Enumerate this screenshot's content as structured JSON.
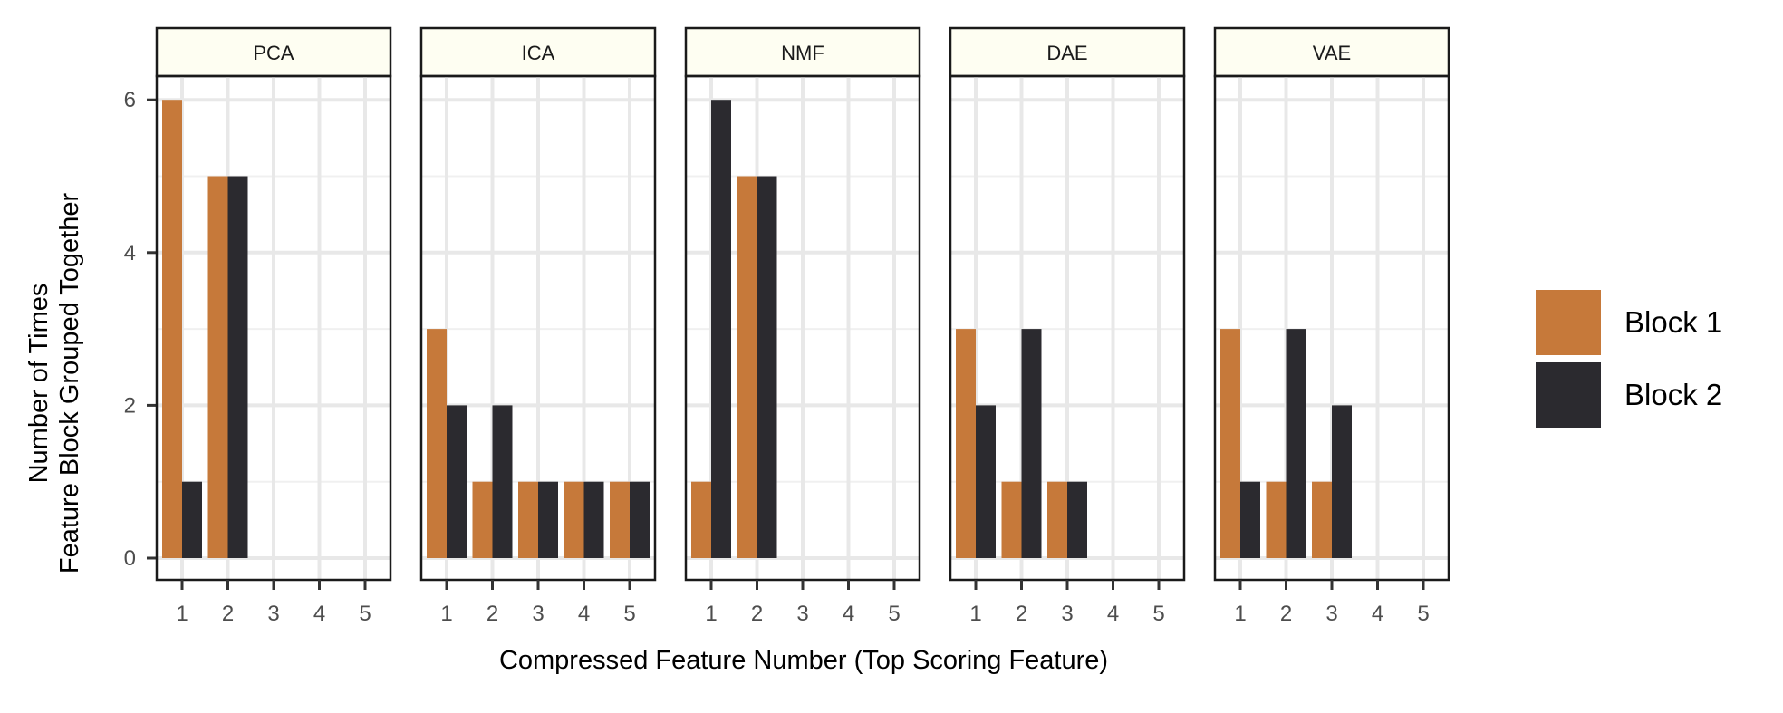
{
  "chart_data": {
    "type": "bar",
    "layout": "faceted",
    "xlabel": "Compressed Feature Number (Top Scoring Feature)",
    "ylabel_lines": [
      "Number of Times",
      "Feature Block Grouped Together"
    ],
    "x_ticks": [
      "1",
      "2",
      "3",
      "4",
      "5"
    ],
    "y_ticks": [
      0,
      2,
      4,
      6
    ],
    "ylim": [
      0,
      6
    ],
    "grid": true,
    "legend_position": "right",
    "series": [
      {
        "name": "Block 1",
        "color": "#C6793A"
      },
      {
        "name": "Block 2",
        "color": "#2B2A2F"
      }
    ],
    "facets": [
      {
        "title": "PCA",
        "block1": [
          6,
          5,
          0,
          0,
          0
        ],
        "block2": [
          1,
          5,
          0,
          0,
          0
        ]
      },
      {
        "title": "ICA",
        "block1": [
          3,
          1,
          1,
          1,
          1
        ],
        "block2": [
          2,
          2,
          1,
          1,
          1
        ]
      },
      {
        "title": "NMF",
        "block1": [
          1,
          5,
          0,
          0,
          0
        ],
        "block2": [
          6,
          5,
          0,
          0,
          0
        ]
      },
      {
        "title": "DAE",
        "block1": [
          3,
          1,
          1,
          0,
          0
        ],
        "block2": [
          2,
          3,
          1,
          0,
          0
        ]
      },
      {
        "title": "VAE",
        "block1": [
          3,
          1,
          1,
          0,
          0
        ],
        "block2": [
          1,
          3,
          2,
          0,
          0
        ]
      }
    ]
  }
}
